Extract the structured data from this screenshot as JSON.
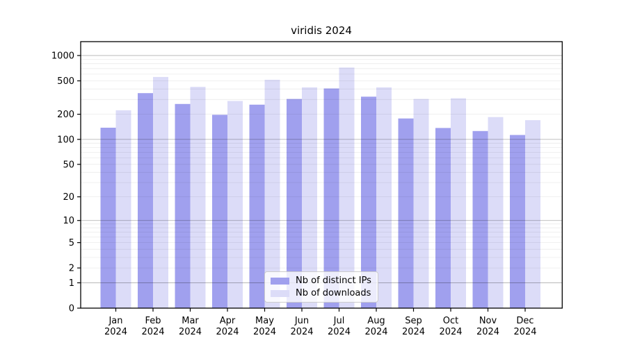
{
  "chart_data": {
    "type": "bar",
    "title": "viridis 2024",
    "categories": [
      "Jan 2024",
      "Feb 2024",
      "Mar 2024",
      "Apr 2024",
      "May 2024",
      "Jun 2024",
      "Jul 2024",
      "Aug 2024",
      "Sep 2024",
      "Oct 2024",
      "Nov 2024",
      "Dec 2024"
    ],
    "month_labels": [
      "Jan",
      "Feb",
      "Mar",
      "Apr",
      "May",
      "Jun",
      "Jul",
      "Aug",
      "Sep",
      "Oct",
      "Nov",
      "Dec"
    ],
    "year_label": "2024",
    "series": [
      {
        "name": "Nb of distinct IPs",
        "color": "#a0a0ee",
        "values": [
          138,
          357,
          265,
          197,
          260,
          304,
          405,
          324,
          178,
          137,
          126,
          113
        ]
      },
      {
        "name": "Nb of downloads",
        "color": "#dcdcf8",
        "values": [
          223,
          556,
          424,
          288,
          515,
          418,
          720,
          418,
          304,
          310,
          185,
          170
        ]
      }
    ],
    "yscale": "log1p",
    "ylim": [
      0,
      1500
    ],
    "y_ticks": [
      0,
      1,
      2,
      5,
      10,
      20,
      50,
      100,
      200,
      500,
      1000
    ],
    "y_minor_gridlines": [
      2,
      3,
      4,
      5,
      6,
      7,
      8,
      9,
      20,
      30,
      40,
      50,
      60,
      70,
      80,
      90,
      200,
      300,
      400,
      500,
      600,
      700,
      800,
      900
    ],
    "y_major_gridlines": [
      1,
      10,
      100,
      1000
    ],
    "grid": true,
    "legend_position": "lower center",
    "colors": {
      "minor_grid": "rgba(0,0,0,0.08)",
      "major_grid": "rgba(0,0,0,0.28)",
      "axis": "#000000",
      "text": "#000000",
      "legend_border": "#cccccc",
      "legend_background": "rgba(255,255,255,0.8)"
    }
  }
}
